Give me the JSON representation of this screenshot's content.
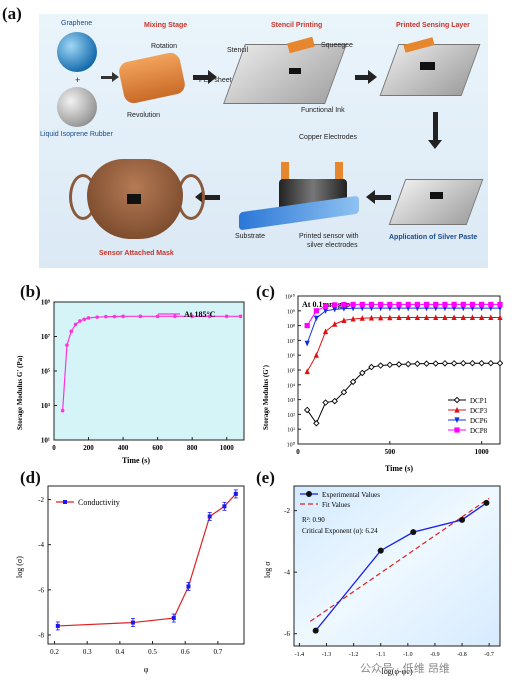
{
  "panel_a": {
    "label": "(a)",
    "graphene": "Graphene",
    "plus": "+",
    "rubber": "Liquid Isoprene Rubber",
    "mixing_stage": "Mixing Stage",
    "rotation": "Rotation",
    "revolution": "Revolution",
    "stencil_printing": "Stencil Printing",
    "stencil": "Stencil",
    "squeegee": "Squeegee",
    "pet_sheet": "PET sheet",
    "functional_ink": "Functional Ink",
    "printed_sensing_layer": "Printed Sensing Layer",
    "copper_electrodes": "Copper Electrodes",
    "substrate": "Substrate",
    "printed_sensor": "Printed sensor with",
    "silver_electrodes": "silver electrodes",
    "application": "Application of Silver Paste",
    "sensor_mask": "Sensor Attached Mask"
  },
  "chart_data": [
    {
      "panel": "(b)",
      "type": "line",
      "xlabel": "Time (s)",
      "ylabel": "Storage Modulus G' (Pa)",
      "xlim": [
        0,
        1100
      ],
      "xticks": [
        0,
        200,
        400,
        600,
        800,
        1000
      ],
      "ylog": true,
      "yticks": [
        "10¹",
        "10³",
        "10⁵",
        "10⁷",
        "10⁹"
      ],
      "ylim_exp": [
        1,
        9
      ],
      "series": [
        {
          "name": "At 185°C",
          "color": "#ff33dd",
          "x": [
            50,
            75,
            100,
            125,
            150,
            175,
            200,
            250,
            300,
            350,
            400,
            500,
            600,
            700,
            800,
            900,
            1000,
            1080
          ],
          "y_exp": [
            2.7,
            6.5,
            7.3,
            7.7,
            7.9,
            8.0,
            8.08,
            8.12,
            8.15,
            8.16,
            8.17,
            8.17,
            8.17,
            8.17,
            8.17,
            8.17,
            8.17,
            8.17
          ]
        }
      ]
    },
    {
      "panel": "(c)",
      "type": "line",
      "title": "At 0.1mm gap",
      "xlabel": "Time (s)",
      "ylabel": "Storage Modulus (G')",
      "xlim": [
        0,
        1100
      ],
      "xticks": [
        0,
        500,
        1000
      ],
      "ylog": true,
      "yticks": [
        "10⁰",
        "10¹",
        "10²",
        "10³",
        "10⁴",
        "10⁵",
        "10⁶",
        "10⁷",
        "10⁸",
        "10⁹",
        "10¹⁰"
      ],
      "ylim_exp": [
        0,
        10
      ],
      "series": [
        {
          "name": "DCP1",
          "color": "#000000",
          "marker": "diamond",
          "x": [
            50,
            100,
            150,
            200,
            250,
            300,
            350,
            400,
            450,
            500,
            550,
            600,
            650,
            700,
            750,
            800,
            850,
            900,
            950,
            1000,
            1050,
            1100
          ],
          "y_exp": [
            2.3,
            1.4,
            2.8,
            2.9,
            3.5,
            4.2,
            4.8,
            5.2,
            5.3,
            5.35,
            5.38,
            5.4,
            5.42,
            5.43,
            5.44,
            5.45,
            5.45,
            5.46,
            5.46,
            5.46,
            5.46,
            5.46
          ]
        },
        {
          "name": "DCP3",
          "color": "#e01010",
          "marker": "triangle",
          "x": [
            50,
            100,
            150,
            200,
            250,
            300,
            350,
            400,
            450,
            500,
            550,
            600,
            650,
            700,
            750,
            800,
            850,
            900,
            950,
            1000,
            1050,
            1100
          ],
          "y_exp": [
            4.9,
            6.0,
            7.6,
            8.1,
            8.35,
            8.45,
            8.5,
            8.52,
            8.53,
            8.54,
            8.55,
            8.55,
            8.55,
            8.55,
            8.55,
            8.55,
            8.55,
            8.55,
            8.55,
            8.55,
            8.55,
            8.55
          ]
        },
        {
          "name": "DCP6",
          "color": "#1030e0",
          "marker": "triangle-down",
          "x": [
            50,
            100,
            150,
            200,
            250,
            300,
            350,
            400,
            450,
            500,
            550,
            600,
            650,
            700,
            750,
            800,
            850,
            900,
            950,
            1000,
            1050,
            1100
          ],
          "y_exp": [
            6.8,
            8.5,
            9.0,
            9.1,
            9.15,
            9.17,
            9.18,
            9.18,
            9.18,
            9.18,
            9.18,
            9.18,
            9.18,
            9.18,
            9.18,
            9.18,
            9.18,
            9.18,
            9.18,
            9.18,
            9.18,
            9.18
          ]
        },
        {
          "name": "DCP8",
          "color": "#ff00ff",
          "marker": "square",
          "x": [
            50,
            100,
            150,
            200,
            250,
            300,
            350,
            400,
            450,
            500,
            550,
            600,
            650,
            700,
            750,
            800,
            850,
            900,
            950,
            1000,
            1050,
            1100
          ],
          "y_exp": [
            8.0,
            9.0,
            9.3,
            9.4,
            9.42,
            9.43,
            9.43,
            9.43,
            9.43,
            9.43,
            9.43,
            9.43,
            9.43,
            9.43,
            9.43,
            9.43,
            9.43,
            9.43,
            9.43,
            9.43,
            9.43,
            9.43
          ]
        }
      ]
    },
    {
      "panel": "(d)",
      "type": "line",
      "xlabel": "φ",
      "ylabel": "log (σ)",
      "xlim": [
        0.18,
        0.78
      ],
      "ylim": [
        -8.4,
        -1.4
      ],
      "xticks": [
        "0.2",
        "0.3",
        "0.4",
        "0.5",
        "0.6",
        "0.7"
      ],
      "yticks": [
        "-8",
        "-6",
        "-4",
        "-2"
      ],
      "series": [
        {
          "name": "Conductivity",
          "color": "#e02020",
          "marker_color": "#1a1aee",
          "x": [
            0.21,
            0.44,
            0.565,
            0.61,
            0.675,
            0.72,
            0.755
          ],
          "y": [
            -7.6,
            -7.45,
            -7.25,
            -5.85,
            -2.75,
            -2.3,
            -1.75
          ]
        }
      ]
    },
    {
      "panel": "(e)",
      "type": "scatter",
      "xlabel": "log(φ-φc)",
      "ylabel": "log σ",
      "xlim": [
        -1.42,
        -0.66
      ],
      "ylim": [
        -6.4,
        -1.2
      ],
      "xticks": [
        "-1.4",
        "-1.3",
        "-1.2",
        "-1.1",
        "-1.0",
        "-0.9",
        "-0.8",
        "-0.7"
      ],
      "yticks": [
        "-6",
        "-4",
        "-2"
      ],
      "r2": "R²: 0.90",
      "critical": "Critical Exponent (α): 6.24",
      "series": [
        {
          "name": "Experimental Values",
          "color": "#1a1aee",
          "x": [
            -1.34,
            -1.1,
            -0.98,
            -0.8,
            -0.71
          ],
          "y": [
            -5.9,
            -3.3,
            -2.7,
            -2.3,
            -1.75
          ]
        },
        {
          "name": "Fit Values",
          "color": "#e02020",
          "dashed": true,
          "x": [
            -1.36,
            -0.7
          ],
          "y": [
            -5.6,
            -1.6
          ]
        }
      ]
    }
  ],
  "watermark": "公众号 · 低维 昂维"
}
